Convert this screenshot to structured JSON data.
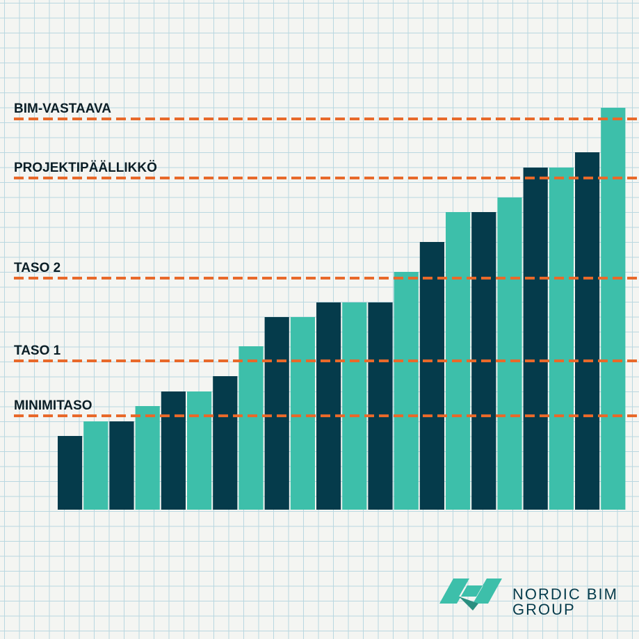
{
  "chart_data": {
    "type": "bar",
    "values": [
      106,
      127,
      127,
      149,
      170,
      170,
      192,
      235,
      277,
      277,
      298,
      298,
      298,
      342,
      385,
      428,
      428,
      449,
      492,
      492,
      514,
      578
    ],
    "colors": [
      "#053b4b",
      "#3dbfaa"
    ],
    "ylim": [
      0,
      733
    ],
    "reference_lines": [
      {
        "label": "BIM-VASTAAVA",
        "value": 562
      },
      {
        "label": "PROJEKTIPÄÄLLIKKÖ",
        "value": 477
      },
      {
        "label": "TASO 2",
        "value": 333
      },
      {
        "label": "TASO 1",
        "value": 214
      },
      {
        "label": "MINIMITASO",
        "value": 135
      }
    ],
    "reference_color": "#e8692a"
  },
  "logo": {
    "line1": "NORDIC BIM",
    "line2": "GROUP"
  }
}
